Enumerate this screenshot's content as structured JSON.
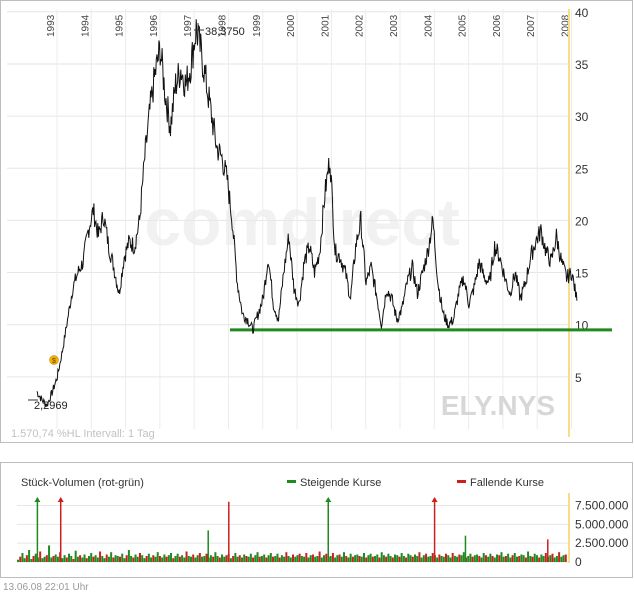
{
  "chart_data": [
    {
      "type": "line",
      "symbol": "ELY.NYS",
      "watermark": ".comdirect",
      "info": "1.570,74 %HL Intervall: 1 Tag",
      "x_ticks": [
        "1993",
        "1994",
        "1995",
        "1996",
        "1997",
        "1998",
        "1999",
        "2000",
        "2001",
        "2002",
        "2003",
        "2004",
        "2005",
        "2006",
        "2007",
        "2008"
      ],
      "y_ticks": [
        "40",
        "35",
        "30",
        "25",
        "20",
        "15",
        "10",
        "5"
      ],
      "ylim": [
        0,
        40
      ],
      "high_label": "38,3750",
      "low_label": "2,2969",
      "support_level": 9.5,
      "support_color": "#1f8a1f",
      "dividend_marker": "$",
      "series": [
        {
          "x": [
            1992.7,
            1992.85,
            1993.0,
            1993.15,
            1993.3,
            1993.45,
            1993.6,
            1993.75,
            1993.9,
            1994.05,
            1994.2,
            1994.35,
            1994.5,
            1994.65,
            1994.8,
            1994.95,
            1995.1,
            1995.25,
            1995.4,
            1995.55,
            1995.7,
            1995.85,
            1996.0,
            1996.15,
            1996.3,
            1996.45,
            1996.6,
            1996.75,
            1996.9,
            1997.05,
            1997.2,
            1997.35,
            1997.5,
            1997.65,
            1997.8,
            1997.95,
            1998.1,
            1998.25,
            1998.4,
            1998.55,
            1998.7,
            1998.85,
            1999.0,
            1999.15,
            1999.3,
            1999.45,
            1999.6,
            1999.75,
            1999.9,
            2000.05,
            2000.2,
            2000.35,
            2000.5,
            2000.65,
            2000.8,
            2000.95,
            2001.1,
            2001.25,
            2001.4,
            2001.55,
            2001.7,
            2001.85,
            2002.0,
            2002.15,
            2002.3,
            2002.45,
            2002.6,
            2002.75,
            2002.9,
            2003.05,
            2003.2,
            2003.35,
            2003.5,
            2003.65,
            2003.8,
            2003.95,
            2004.1,
            2004.25,
            2004.4,
            2004.55,
            2004.7,
            2004.85,
            2005.0,
            2005.15,
            2005.3,
            2005.45,
            2005.6,
            2005.75,
            2005.9,
            2006.05,
            2006.2,
            2006.35,
            2006.5,
            2006.65,
            2006.8,
            2006.95,
            2007.1,
            2007.25,
            2007.4,
            2007.55,
            2007.7,
            2007.85,
            2008.0,
            2008.15,
            2008.3,
            2008.45
          ],
          "y": [
            3.6,
            2.8,
            2.3,
            3.5,
            5.0,
            7.5,
            10.5,
            13.5,
            15.0,
            16.0,
            19.0,
            21.0,
            18.5,
            20.5,
            17.5,
            15.5,
            13.0,
            16.5,
            18.0,
            17.5,
            20.0,
            26.0,
            30.5,
            34.0,
            36.5,
            32.0,
            29.0,
            33.0,
            34.5,
            33.0,
            35.0,
            38.4,
            36.0,
            33.0,
            30.0,
            27.0,
            26.0,
            24.0,
            20.0,
            14.0,
            11.0,
            10.5,
            9.5,
            11.0,
            12.5,
            16.5,
            12.0,
            10.5,
            15.0,
            18.5,
            13.5,
            12.0,
            16.0,
            17.5,
            15.0,
            17.0,
            22.5,
            26.0,
            17.0,
            16.5,
            15.0,
            12.5,
            17.5,
            20.0,
            14.0,
            15.5,
            13.0,
            10.0,
            13.5,
            12.5,
            10.5,
            11.5,
            14.0,
            15.5,
            13.0,
            15.0,
            17.0,
            20.0,
            14.0,
            11.0,
            10.0,
            10.5,
            13.0,
            14.5,
            12.0,
            13.5,
            16.0,
            14.5,
            14.0,
            17.5,
            16.5,
            14.5,
            13.0,
            15.0,
            12.5,
            14.0,
            16.5,
            18.0,
            19.0,
            17.0,
            16.0,
            18.5,
            16.0,
            14.5,
            15.0,
            12.3
          ]
        }
      ]
    },
    {
      "type": "bar",
      "title": "Stück-Volumen (rot-grün)",
      "legend": [
        {
          "name": "Steigende Kurse",
          "color": "#1f8a1f"
        },
        {
          "name": "Fallende Kurse",
          "color": "#cc1f1f"
        }
      ],
      "y_ticks": [
        "7.500.000",
        "5.000.000",
        "2.500.000",
        "0"
      ],
      "ylim": [
        0,
        8500000
      ],
      "values": [
        300000,
        700000,
        1200000,
        500000,
        900000,
        1600000,
        400000,
        800000,
        1100000,
        600000,
        1400000,
        500000,
        700000,
        900000,
        2200000,
        600000,
        800000,
        1000000,
        700000,
        1300000,
        500000,
        900000,
        600000,
        1100000,
        800000,
        400000,
        1500000,
        700000,
        900000,
        600000,
        1000000,
        500000,
        800000,
        1200000,
        700000,
        900000,
        600000,
        1400000,
        800000,
        500000,
        1000000,
        700000,
        1300000,
        600000,
        900000,
        800000,
        700000,
        1100000,
        500000,
        900000,
        1600000,
        800000,
        600000,
        1000000,
        700000,
        1200000,
        900000,
        500000,
        800000,
        1100000,
        600000,
        900000,
        700000,
        1300000,
        800000,
        600000,
        1000000,
        700000,
        900000,
        1200000,
        500000,
        800000,
        1100000,
        700000,
        900000,
        600000,
        1400000,
        800000,
        700000,
        1000000,
        600000,
        900000,
        1200000,
        700000,
        800000,
        1100000,
        600000,
        900000,
        700000,
        1300000,
        800000,
        600000,
        1000000,
        700000,
        900000,
        1100000,
        500000,
        800000,
        1200000,
        700000,
        900000,
        600000,
        1000000,
        800000,
        700000,
        1100000,
        600000,
        900000,
        1300000,
        700000,
        800000,
        1000000,
        600000,
        900000,
        1200000,
        700000,
        800000,
        1100000,
        600000,
        900000,
        700000,
        1300000,
        800000,
        600000,
        1000000,
        700000,
        900000,
        1100000,
        800000,
        700000,
        1200000,
        600000,
        900000,
        1000000,
        700000,
        800000,
        1400000,
        600000,
        900000,
        1100000,
        700000,
        800000,
        1200000,
        600000,
        900000,
        1000000,
        700000,
        1300000,
        800000,
        600000,
        1100000,
        700000,
        900000,
        1000000,
        800000,
        700000,
        1200000,
        600000,
        900000,
        1100000,
        700000,
        800000,
        1000000,
        600000,
        1300000,
        900000,
        700000,
        1100000,
        800000,
        600000,
        1000000,
        900000,
        700000,
        1200000,
        800000,
        600000,
        1100000,
        900000,
        700000,
        1000000,
        800000,
        1300000,
        600000,
        900000,
        1100000,
        700000,
        800000,
        1200000,
        900000,
        600000,
        1000000,
        800000,
        700000,
        1100000,
        900000,
        600000,
        1200000,
        800000,
        700000,
        1000000,
        900000,
        1300000,
        600000,
        800000,
        1100000,
        700000,
        900000,
        1000000,
        800000,
        600000,
        1200000,
        900000,
        700000,
        1100000,
        800000,
        600000,
        1000000,
        900000,
        1300000,
        700000,
        800000,
        1100000,
        600000,
        900000,
        1200000,
        700000,
        800000,
        1000000,
        900000,
        600000,
        1400000,
        800000,
        700000,
        1100000,
        900000,
        600000,
        1000000,
        800000,
        1200000,
        700000,
        900000,
        1100000,
        600000,
        800000,
        1300000,
        700000,
        900000,
        1000000
      ],
      "spikes": [
        {
          "x": 1992.72,
          "value": 8500000
        },
        {
          "x": 1993.4,
          "value": 8500000
        },
        {
          "x": 1997.7,
          "value": 4200000
        },
        {
          "x": 1998.3,
          "value": 8000000
        },
        {
          "x": 2001.2,
          "value": 8500000
        },
        {
          "x": 2004.3,
          "value": 8500000
        },
        {
          "x": 2005.2,
          "value": 3500000
        },
        {
          "x": 2007.6,
          "value": 3000000
        }
      ]
    }
  ],
  "footer": {
    "timestamp": "13.06.08    22:01 Uhr"
  }
}
